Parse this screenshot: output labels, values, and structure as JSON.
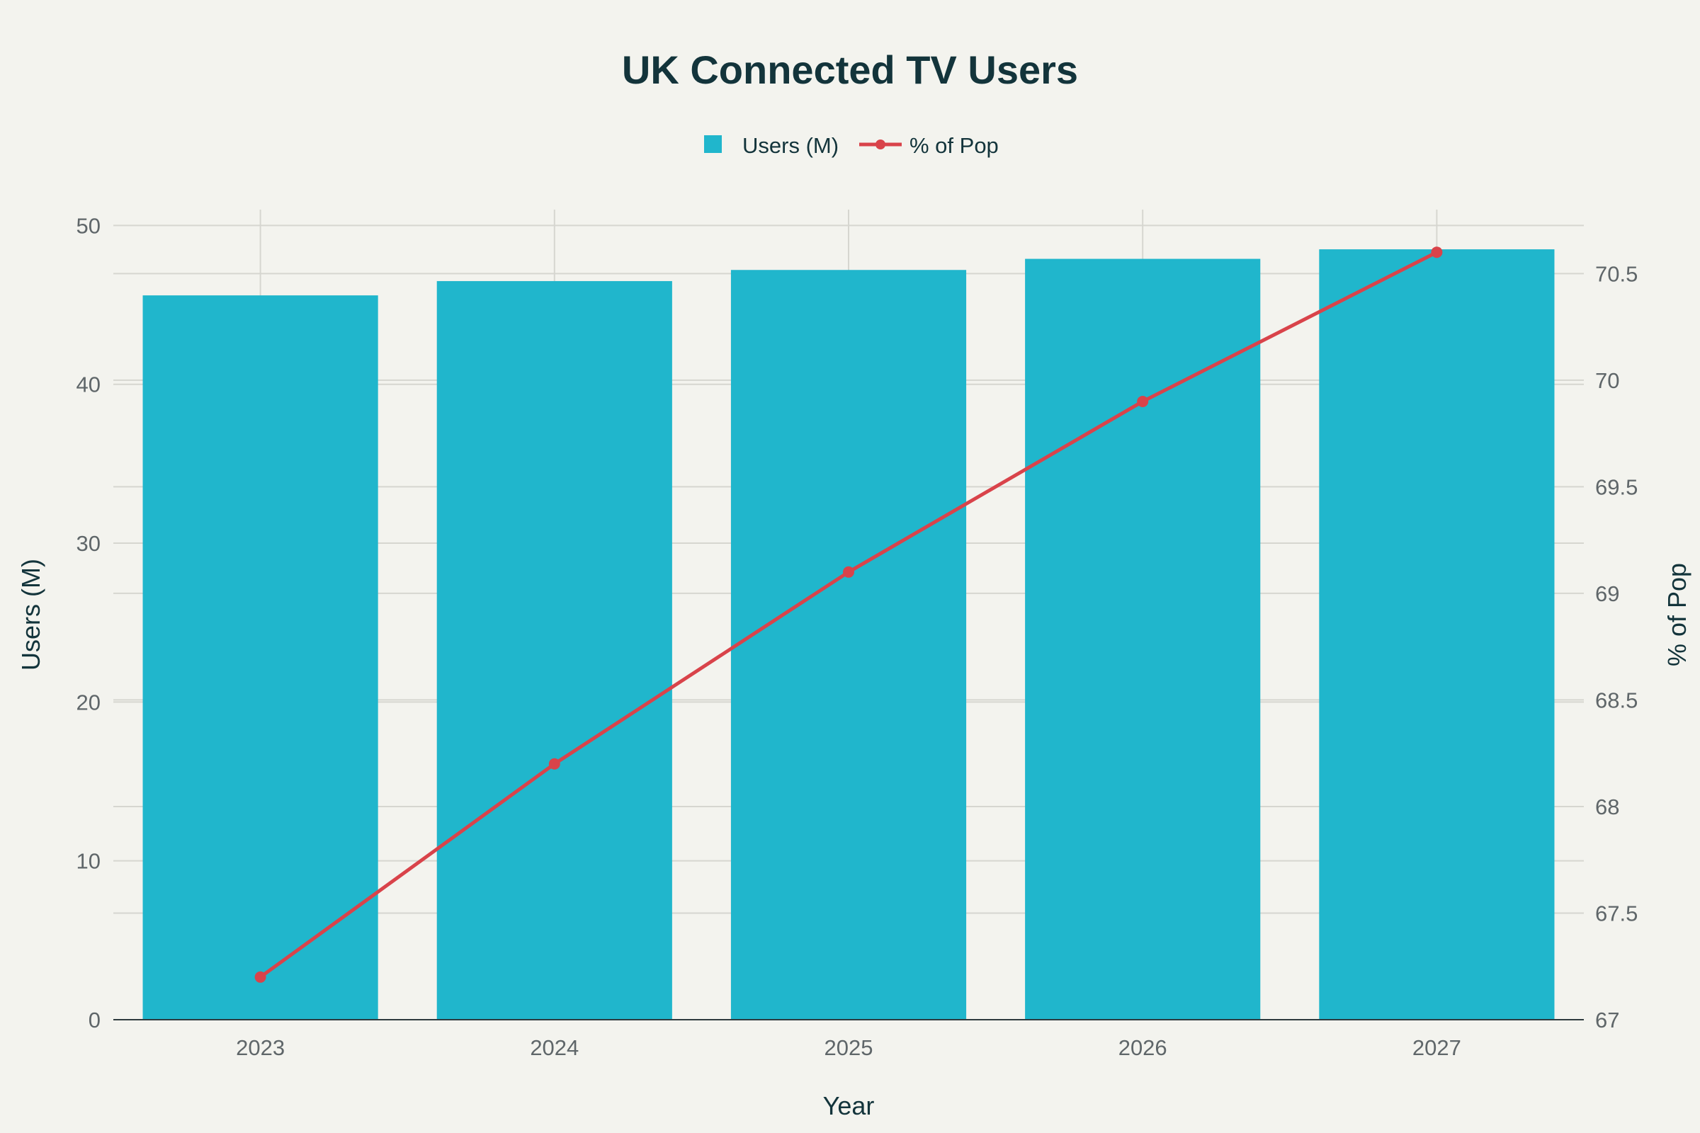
{
  "chart_data": {
    "type": "bar",
    "title": "UK Connected TV Users",
    "categories": [
      "2023",
      "2024",
      "2025",
      "2026",
      "2027"
    ],
    "xlabel": "Year",
    "ylabel": "Users (M)",
    "y2label": "% of Pop",
    "ylim": [
      0,
      51
    ],
    "y2lim": [
      67,
      70.8
    ],
    "yticks": [
      0,
      10,
      20,
      30,
      40,
      50
    ],
    "y2ticks": [
      67,
      67.5,
      68,
      68.5,
      69,
      69.5,
      70,
      70.5
    ],
    "y2tick_labels": [
      "67",
      "67.5",
      "68",
      "68.5",
      "69",
      "69.5",
      "70",
      "70.5"
    ],
    "grid": true,
    "legend_position": "top-center",
    "series": [
      {
        "name": "Users (M)",
        "type": "bar",
        "axis": "left",
        "color": "#20b6cc",
        "values": [
          45.6,
          46.5,
          47.2,
          47.9,
          48.5
        ]
      },
      {
        "name": "% of Pop",
        "type": "line",
        "axis": "right",
        "color": "#d9434a",
        "values": [
          67.2,
          68.2,
          69.1,
          69.9,
          70.6
        ]
      }
    ]
  }
}
